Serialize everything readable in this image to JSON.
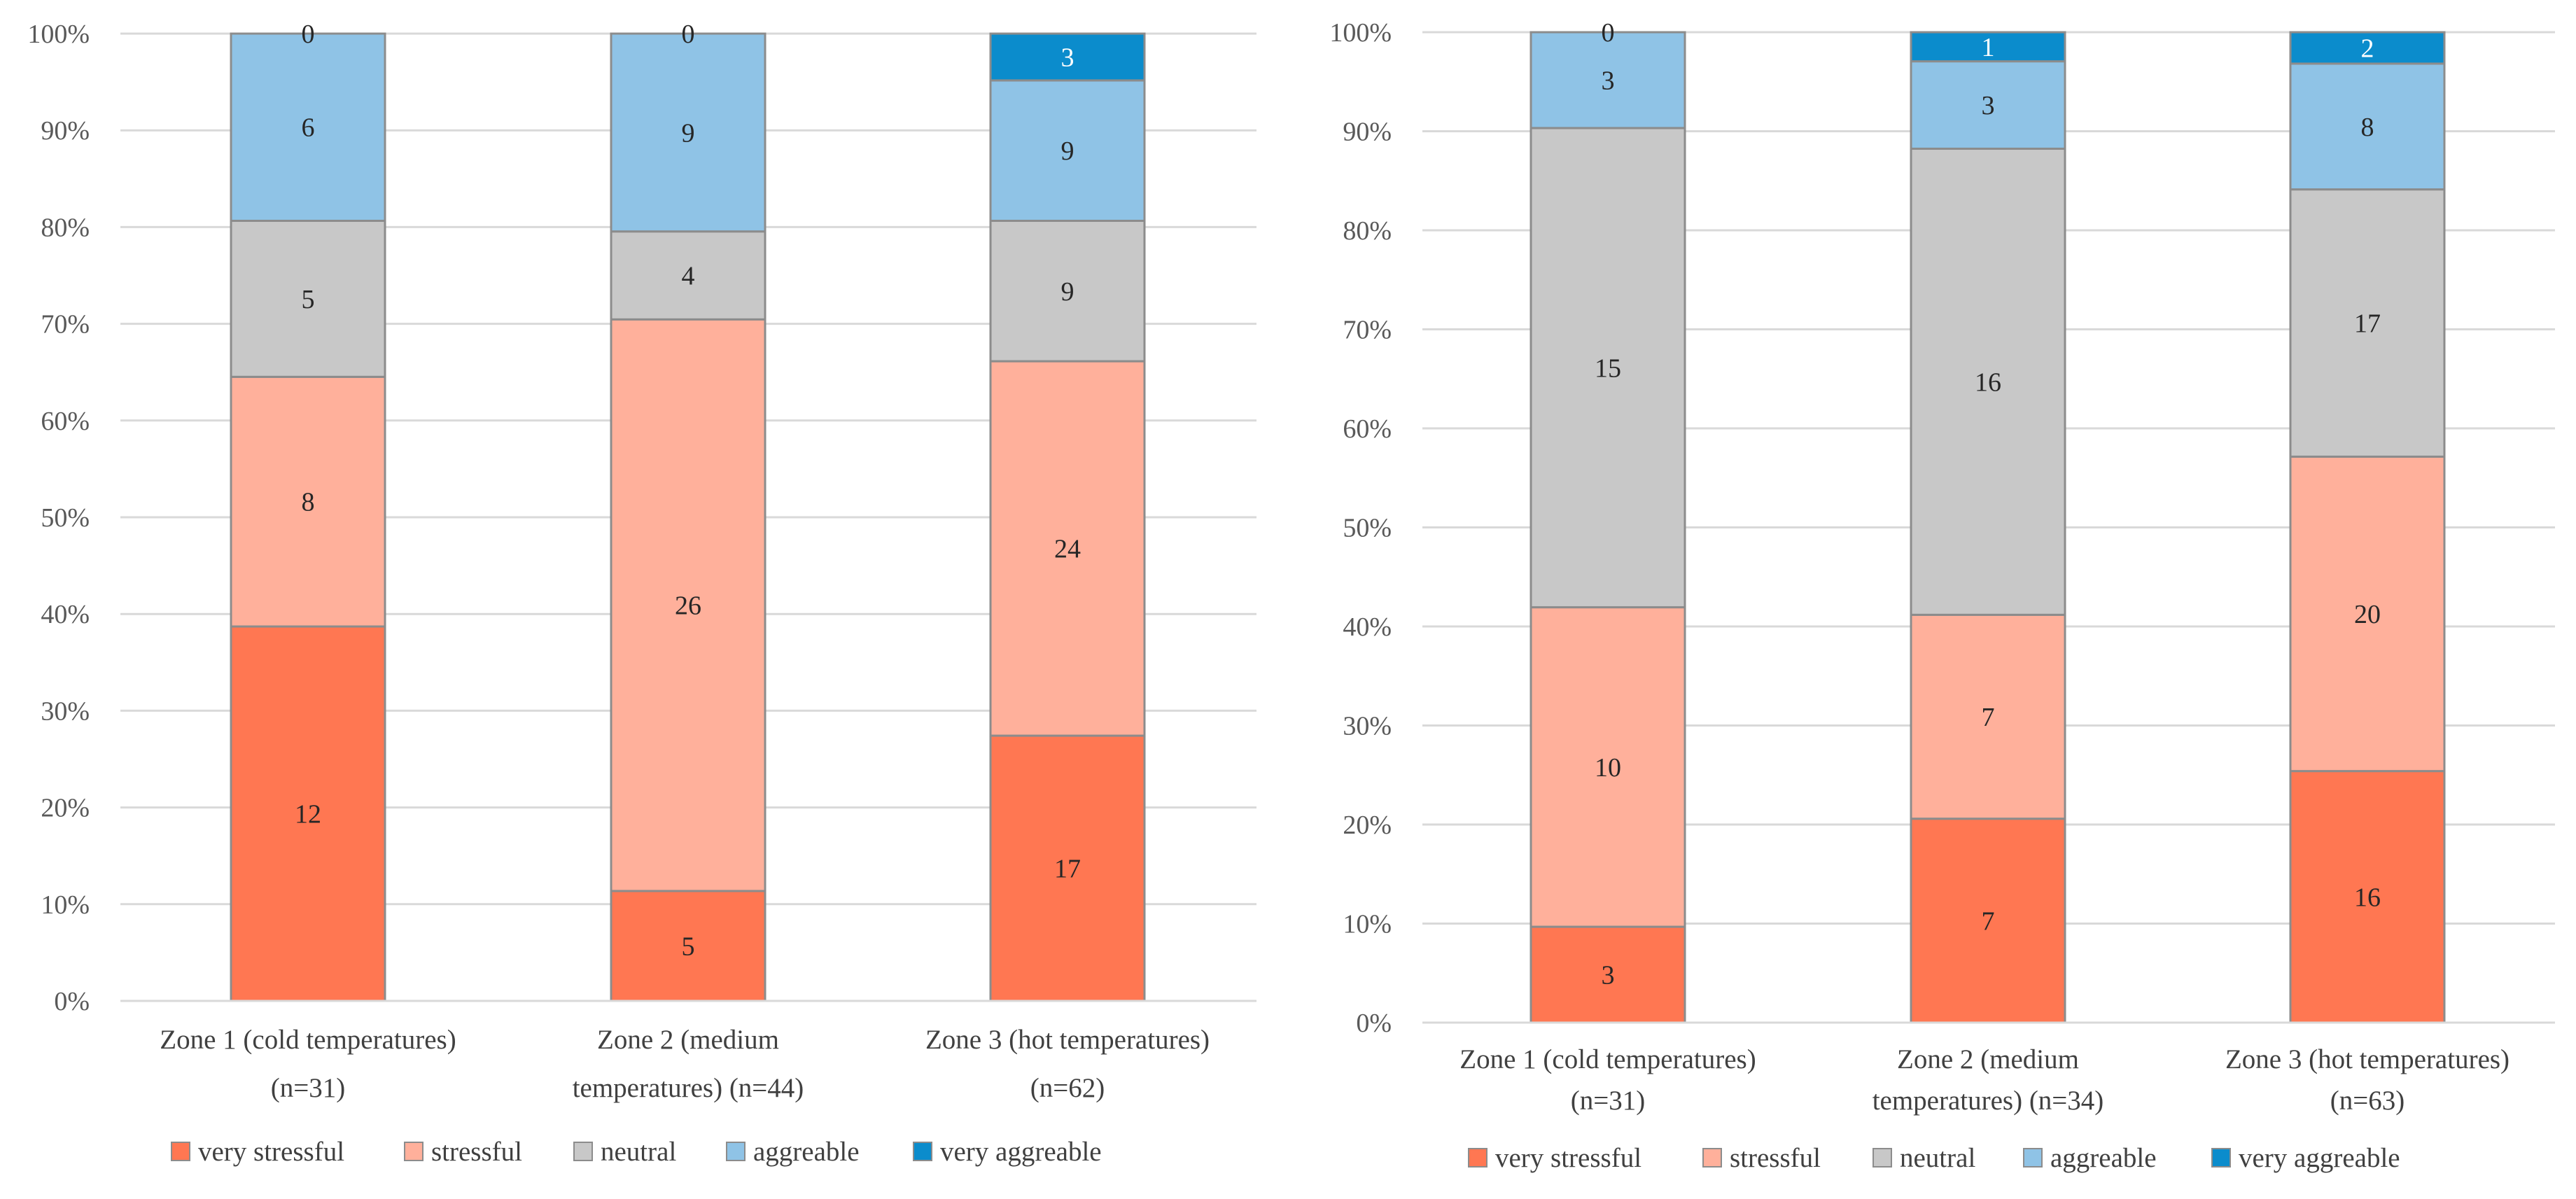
{
  "chart_data": [
    {
      "type": "bar",
      "stacked": "percent",
      "categories": [
        "Zone 1 (cold temperatures) (n=31)",
        "Zone 2 (medium temperatures) (n=44)",
        "Zone 3 (hot temperatures) (n=62)"
      ],
      "category_lines": [
        [
          "Zone 1 (cold temperatures)",
          "(n=31)"
        ],
        [
          "Zone 2 (medium",
          "temperatures) (n=44)"
        ],
        [
          "Zone 3 (hot temperatures)",
          "(n=62)"
        ]
      ],
      "series": [
        {
          "name": "very stressful",
          "color": "#ff7752",
          "values": [
            12,
            5,
            17
          ]
        },
        {
          "name": "stressful",
          "color": "#ffb09b",
          "values": [
            8,
            26,
            24
          ]
        },
        {
          "name": "neutral",
          "color": "#c8c8c8",
          "values": [
            5,
            4,
            9
          ]
        },
        {
          "name": "aggreable",
          "color": "#8fc3e6",
          "values": [
            6,
            9,
            9
          ]
        },
        {
          "name": "very aggreable",
          "color": "#0b8ccc",
          "values": [
            0,
            0,
            3
          ]
        }
      ],
      "y_ticks": [
        "0%",
        "10%",
        "20%",
        "30%",
        "40%",
        "50%",
        "60%",
        "70%",
        "80%",
        "90%",
        "100%"
      ],
      "ylim": [
        0,
        100
      ],
      "legend_position": "bottom",
      "grid": true
    },
    {
      "type": "bar",
      "stacked": "percent",
      "categories": [
        "Zone 1 (cold temperatures) (n=31)",
        "Zone 2 (medium temperatures) (n=34)",
        "Zone 3 (hot temperatures) (n=63)"
      ],
      "category_lines": [
        [
          "Zone 1 (cold temperatures)",
          "(n=31)"
        ],
        [
          "Zone 2 (medium",
          "temperatures) (n=34)"
        ],
        [
          "Zone 3 (hot temperatures)",
          "(n=63)"
        ]
      ],
      "series": [
        {
          "name": "very stressful",
          "color": "#ff7752",
          "values": [
            3,
            7,
            16
          ]
        },
        {
          "name": "stressful",
          "color": "#ffb09b",
          "values": [
            10,
            7,
            20
          ]
        },
        {
          "name": "neutral",
          "color": "#c8c8c8",
          "values": [
            15,
            16,
            17
          ]
        },
        {
          "name": "aggreable",
          "color": "#8fc3e6",
          "values": [
            3,
            3,
            8
          ]
        },
        {
          "name": "very aggreable",
          "color": "#0b8ccc",
          "values": [
            0,
            1,
            2
          ]
        }
      ],
      "y_ticks": [
        "0%",
        "10%",
        "20%",
        "30%",
        "40%",
        "50%",
        "60%",
        "70%",
        "80%",
        "90%",
        "100%"
      ],
      "ylim": [
        0,
        100
      ],
      "legend_position": "bottom",
      "grid": true
    }
  ]
}
